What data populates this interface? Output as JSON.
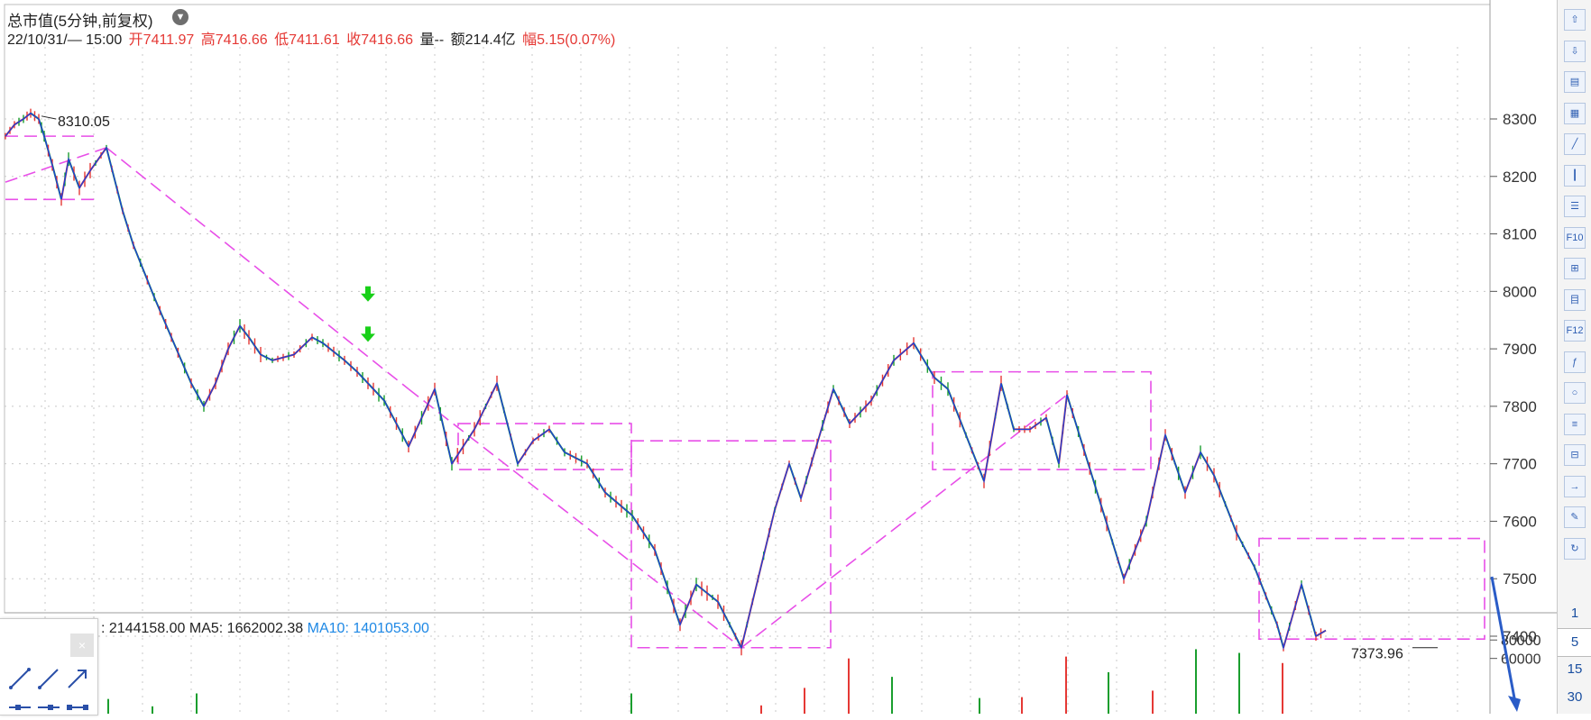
{
  "header": {
    "title": "总市值(5分钟,前复权)",
    "dropdown_icon": "chevron-down-icon",
    "info": {
      "datetime": "22/10/31/— 15:00",
      "open": "开7411.97",
      "high": "高7416.66",
      "low": "低7411.61",
      "close": "收7416.66",
      "volume": "量--",
      "amount": "额214.4亿",
      "change": "幅5.15(0.07%)"
    }
  },
  "volume_panel": {
    "vol_text": ": 2144158.00",
    "ma5_text": "MA5: 1662002.38",
    "ma10_text": "MA10: 1401053.00"
  },
  "annotations": {
    "high_label": "8310.05",
    "low_label": "7373.96"
  },
  "colors": {
    "up": "#e53935",
    "down": "#1a9e2e",
    "zigzag": "#1f3fd6",
    "pattern": "#e84fe8",
    "ma10": "#1e88e5"
  },
  "chart_data": {
    "type": "line",
    "series": [
      {
        "name": "",
        "x": [
          0,
          10,
          20,
          28,
          37,
          43,
          52,
          62,
          70,
          82,
          94,
          112,
          130,
          142,
          165,
          184,
          206,
          220,
          233,
          247,
          260,
          270,
          283,
          296,
          320,
          340,
          352,
          376,
          390,
          420,
          447,
          476,
          495,
          520,
          545,
          568,
          585,
          603,
          620,
          645,
          665,
          695,
          720,
          748,
          766,
          790,
          816,
          853,
          869,
          882,
          918,
          936,
          960,
          985,
          1007,
          1030,
          1045,
          1085,
          1104,
          1118,
          1136,
          1154,
          1168,
          1177,
          1240,
          1265,
          1286,
          1308,
          1325,
          1340,
          1365,
          1385,
          1410,
          1417,
          1437,
          1453,
          1464
        ],
        "y": [
          8270,
          8290,
          8300,
          8310,
          8300,
          8270,
          8220,
          8160,
          8230,
          8180,
          8210,
          8250,
          8140,
          8080,
          7990,
          7920,
          7840,
          7800,
          7840,
          7900,
          7940,
          7920,
          7890,
          7880,
          7890,
          7920,
          7910,
          7880,
          7860,
          7810,
          7730,
          7830,
          7700,
          7760,
          7840,
          7700,
          7740,
          7760,
          7720,
          7700,
          7650,
          7610,
          7550,
          7420,
          7490,
          7460,
          7380,
          7620,
          7700,
          7640,
          7830,
          7770,
          7810,
          7880,
          7910,
          7850,
          7830,
          7670,
          7840,
          7760,
          7760,
          7780,
          7700,
          7820,
          7500,
          7600,
          7750,
          7650,
          7720,
          7680,
          7580,
          7520,
          7420,
          7380,
          7490,
          7400,
          7410
        ]
      }
    ],
    "ylim": [
      7350,
      8340
    ],
    "yticks": [
      8300,
      8200,
      8100,
      8000,
      7900,
      7800,
      7700,
      7600,
      7500,
      7400
    ],
    "volume_ylim": [
      0,
      90000
    ],
    "volume_yticks": [
      80000,
      60000
    ],
    "volume_bars": [
      {
        "x": 114,
        "v": 16000,
        "dir": "down"
      },
      {
        "x": 163,
        "v": 8000,
        "dir": "down"
      },
      {
        "x": 212,
        "v": 22000,
        "dir": "down"
      },
      {
        "x": 694,
        "v": 22000,
        "dir": "down"
      },
      {
        "x": 838,
        "v": 9000,
        "dir": "up"
      },
      {
        "x": 886,
        "v": 28000,
        "dir": "up"
      },
      {
        "x": 935,
        "v": 60000,
        "dir": "up"
      },
      {
        "x": 983,
        "v": 40000,
        "dir": "down"
      },
      {
        "x": 1080,
        "v": 17000,
        "dir": "down"
      },
      {
        "x": 1127,
        "v": 18000,
        "dir": "up"
      },
      {
        "x": 1176,
        "v": 62000,
        "dir": "up"
      },
      {
        "x": 1223,
        "v": 45000,
        "dir": "down"
      },
      {
        "x": 1272,
        "v": 25000,
        "dir": "up"
      },
      {
        "x": 1320,
        "v": 70000,
        "dir": "down"
      },
      {
        "x": 1368,
        "v": 66000,
        "dir": "down"
      },
      {
        "x": 1416,
        "v": 55000,
        "dir": "up"
      }
    ]
  },
  "right_toolbar": {
    "buttons": [
      "arrow-up-icon",
      "arrow-down-icon",
      "chart-table-icon",
      "grid-table-icon",
      "line-chart-icon",
      "candlestick-icon",
      "list-icon",
      "f10-icon",
      "tree-icon",
      "notes-icon",
      "f12-icon",
      "formula-icon",
      "circle-icon",
      "indicator-list-icon",
      "stack-icon",
      "export-icon",
      "pencil-icon",
      "refresh-icon"
    ],
    "periods": [
      "1",
      "5",
      "15",
      "30"
    ],
    "selected_period": "5"
  },
  "draw_tools": {
    "close_label": "×",
    "tools": [
      "line-segment-icon",
      "ray-icon",
      "arrow-line-icon",
      "h-segment-icon",
      "h-segment-dot-icon",
      "h-segment-end-icon"
    ]
  }
}
